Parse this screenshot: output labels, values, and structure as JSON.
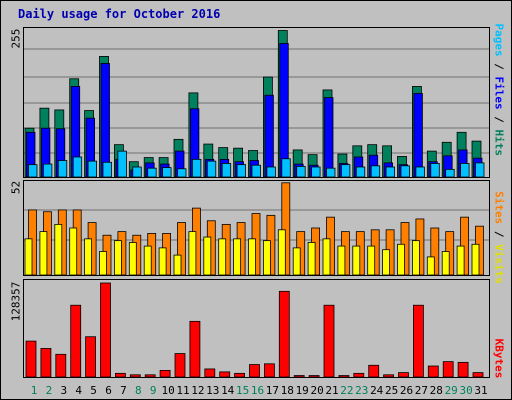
{
  "title": "Daily usage for October 2016",
  "colors": {
    "hits": "#00805c",
    "files": "#0000ff",
    "pages": "#00c0ff",
    "visits": "#ffff00",
    "sites": "#ff8000",
    "kbytes": "#ff0000",
    "weekday_label": "#000000",
    "weekend_label": "#00805c"
  },
  "panels": {
    "top": {
      "ymax_label": "255",
      "side_label": {
        "pages": "Pages",
        "files": "Files",
        "hits": "Hits",
        "sep": " / "
      }
    },
    "middle": {
      "ymax_label": "52",
      "side_label": {
        "sites": "Sites",
        "visits": "Visits",
        "sep": " / "
      }
    },
    "bottom": {
      "ymax_label": "128357",
      "side_label": {
        "kbytes": "KBytes"
      }
    }
  },
  "chart_data": {
    "type": "bar",
    "title": "Daily usage for October 2016",
    "categories": [
      "1",
      "2",
      "3",
      "4",
      "5",
      "6",
      "7",
      "8",
      "9",
      "10",
      "11",
      "12",
      "13",
      "14",
      "15",
      "16",
      "17",
      "18",
      "19",
      "20",
      "21",
      "22",
      "23",
      "24",
      "25",
      "26",
      "27",
      "28",
      "29",
      "30",
      "31"
    ],
    "weekend_days": [
      "1",
      "2",
      "8",
      "9",
      "15",
      "16",
      "22",
      "23",
      "29",
      "30"
    ],
    "charts": [
      {
        "ylim": [
          0,
          255
        ],
        "grid": true,
        "series": [
          {
            "name": "Hits",
            "values": [
              83,
              117,
              114,
              167,
              113,
              205,
              55,
              26,
              33,
              33,
              64,
              143,
              56,
              50,
              49,
              45,
              170,
              249,
              46,
              38,
              148,
              39,
              53,
              55,
              53,
              35,
              154,
              44,
              59,
              76,
              61
            ]
          },
          {
            "name": "Files",
            "values": [
              76,
              83,
              82,
              154,
              100,
              193,
              30,
              12,
              24,
              22,
              44,
              116,
              30,
              30,
              26,
              28,
              139,
              227,
              22,
              20,
              135,
              23,
              34,
              37,
              24,
              21,
              142,
              26,
              36,
              46,
              32
            ]
          },
          {
            "name": "Pages",
            "values": [
              21,
              22,
              28,
              34,
              27,
              25,
              44,
              17,
              15,
              16,
              14,
              30,
              27,
              23,
              21,
              20,
              17,
              31,
              18,
              17,
              15,
              21,
              17,
              19,
              17,
              19,
              17,
              23,
              13,
              23,
              24
            ]
          }
        ]
      },
      {
        "ylim": [
          0,
          52
        ],
        "grid": true,
        "series": [
          {
            "name": "Sites",
            "values": [
              36,
              35,
              36,
              36,
              29,
              22,
              24,
              22,
              23,
              23,
              29,
              37,
              30,
              28,
              29,
              34,
              33,
              51,
              24,
              26,
              32,
              24,
              24,
              25,
              25,
              29,
              31,
              26,
              24,
              32,
              27
            ]
          },
          {
            "name": "Visits",
            "values": [
              20,
              24,
              28,
              26,
              20,
              13,
              19,
              18,
              16,
              15,
              11,
              24,
              21,
              20,
              20,
              20,
              19,
              25,
              15,
              18,
              20,
              16,
              16,
              16,
              14,
              17,
              19,
              10,
              13,
              16,
              17
            ]
          }
        ]
      },
      {
        "ylim": [
          0,
          128357
        ],
        "grid": false,
        "series": [
          {
            "name": "KBytes",
            "values": [
              49000,
              39000,
              31000,
              98000,
              55000,
              128357,
              5000,
              3000,
              3000,
              9000,
              32000,
              76000,
              11000,
              7000,
              5000,
              17000,
              18000,
              117000,
              2000,
              2000,
              98000,
              2000,
              5000,
              16000,
              3000,
              6000,
              98000,
              15000,
              21000,
              20000,
              6000
            ]
          }
        ]
      }
    ]
  }
}
